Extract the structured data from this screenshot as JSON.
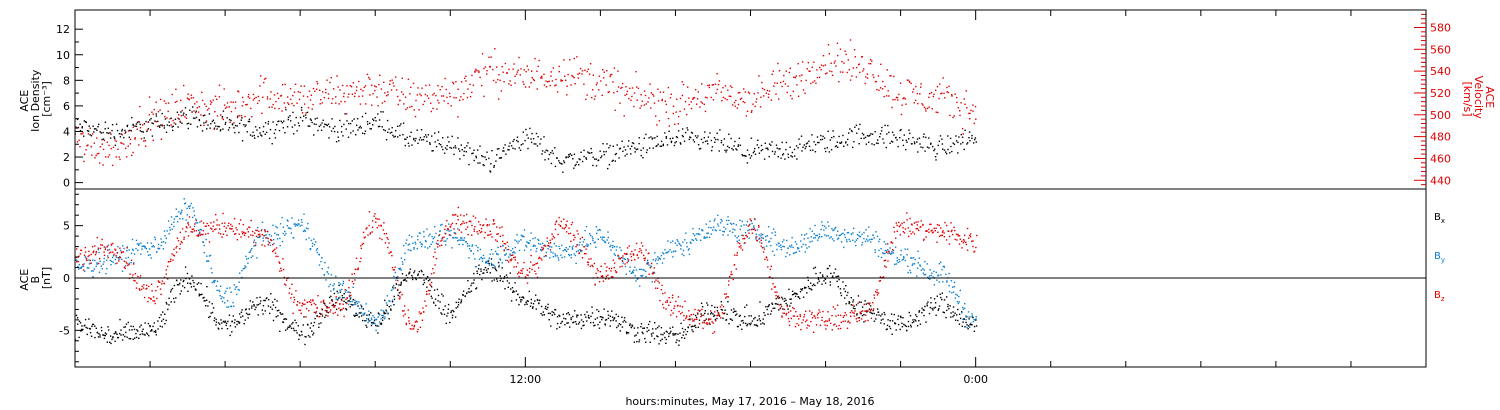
{
  "colors": {
    "black": "#000000",
    "red": "#e00000",
    "blue": "#0a7fd0"
  },
  "chart_data": [
    {
      "type": "scatter",
      "panel": "top",
      "ylabel_lines": [
        "ACE",
        "Ion Density",
        "[cm⁻³]"
      ],
      "ylim": [
        -0.5,
        13.5
      ],
      "yticks": [
        "0",
        "2",
        "4",
        "6",
        "8",
        "10",
        "12"
      ],
      "right_ylabel_lines": [
        "ACE",
        "Velocity",
        "[km/s]"
      ],
      "right_ylim": [
        432,
        596
      ],
      "right_yticks": [
        "440",
        "460",
        "480",
        "500",
        "520",
        "540",
        "560",
        "580"
      ],
      "xlim_hours": [
        -12,
        24
      ],
      "series": [
        {
          "color": "black",
          "axis": "left",
          "x": [
            -12,
            -11,
            -10,
            -9,
            -8,
            -7,
            -6,
            -5,
            -4,
            -3,
            -2,
            -1,
            0,
            1,
            2,
            3,
            4,
            5,
            6,
            7,
            8,
            9,
            10,
            11,
            12
          ],
          "y": [
            4.3,
            4.0,
            4.5,
            5.2,
            4.4,
            4.2,
            5.0,
            4.2,
            4.8,
            3.4,
            3.0,
            1.8,
            3.5,
            1.8,
            2.2,
            2.8,
            3.4,
            3.2,
            2.4,
            2.6,
            3.2,
            3.8,
            3.5,
            2.8,
            3.6
          ]
        },
        {
          "color": "red",
          "axis": "right",
          "x": [
            -12,
            -11,
            -10,
            -9,
            -8,
            -7,
            -6,
            -5,
            -4,
            -3,
            -2,
            -1,
            0,
            1,
            2,
            3,
            4,
            5,
            6,
            7,
            8,
            9,
            10,
            11,
            12
          ],
          "y": [
            475,
            470,
            495,
            510,
            505,
            520,
            515,
            520,
            525,
            515,
            520,
            540,
            535,
            540,
            530,
            515,
            510,
            520,
            515,
            530,
            550,
            545,
            520,
            515,
            505
          ]
        }
      ]
    },
    {
      "type": "scatter",
      "panel": "bottom",
      "ylabel_lines": [
        "ACE",
        "B",
        "[nT]"
      ],
      "ylim": [
        -8.5,
        8.5
      ],
      "yticks": [
        "-5",
        "0",
        "5"
      ],
      "zero_line": true,
      "xlim_hours": [
        -12,
        24
      ],
      "xticks": [
        "12:00",
        "0:00"
      ],
      "xlabel": "hours:minutes, May 17, 2016 – May 18, 2016",
      "series": [
        {
          "name": "Bx",
          "color": "black",
          "x": [
            -12,
            -11,
            -10,
            -9,
            -8,
            -7,
            -6,
            -5,
            -4,
            -3,
            -2,
            -1,
            0,
            1,
            2,
            3,
            4,
            5,
            6,
            7,
            8,
            9,
            10,
            11,
            12
          ],
          "y": [
            -4.5,
            -5.5,
            -5.0,
            0.0,
            -4.5,
            -2.5,
            -5.0,
            -2.0,
            -4.0,
            0.5,
            -3.0,
            1.0,
            -2.0,
            -4.0,
            -3.5,
            -5.0,
            -5.5,
            -3.0,
            -4.0,
            -2.0,
            0.5,
            -3.0,
            -4.5,
            -2.5,
            -4.5
          ]
        },
        {
          "name": "By",
          "color": "blue",
          "x": [
            -12,
            -11,
            -10,
            -9,
            -8,
            -7,
            -6,
            -5,
            -4,
            -3,
            -2,
            -1,
            0,
            1,
            2,
            3,
            4,
            5,
            6,
            7,
            8,
            9,
            10,
            11,
            12
          ],
          "y": [
            1.0,
            2.0,
            3.0,
            6.5,
            -2.0,
            4.0,
            5.0,
            -1.0,
            -4.0,
            3.5,
            4.0,
            2.0,
            3.5,
            2.5,
            4.0,
            0.5,
            3.0,
            5.0,
            4.5,
            3.0,
            4.5,
            4.0,
            2.0,
            0.5,
            -4.0
          ]
        },
        {
          "name": "Bz",
          "color": "red",
          "x": [
            -12,
            -11,
            -10,
            -9,
            -8,
            -7,
            -6,
            -5,
            -4,
            -3,
            -2,
            -1,
            0,
            1,
            2,
            3,
            4,
            5,
            6,
            7,
            8,
            9,
            10,
            11,
            12
          ],
          "y": [
            2.0,
            3.0,
            -1.5,
            4.5,
            5.0,
            4.0,
            -2.5,
            -3.0,
            5.5,
            -4.5,
            5.5,
            5.0,
            0.5,
            5.0,
            0.5,
            2.5,
            -3.0,
            -4.0,
            5.0,
            -3.5,
            -4.0,
            -3.5,
            5.0,
            4.5,
            3.5
          ]
        }
      ],
      "legend": [
        {
          "base": "B",
          "sub": "x",
          "color": "black"
        },
        {
          "base": "B",
          "sub": "y",
          "color": "blue"
        },
        {
          "base": "B",
          "sub": "z",
          "color": "red"
        }
      ]
    }
  ]
}
